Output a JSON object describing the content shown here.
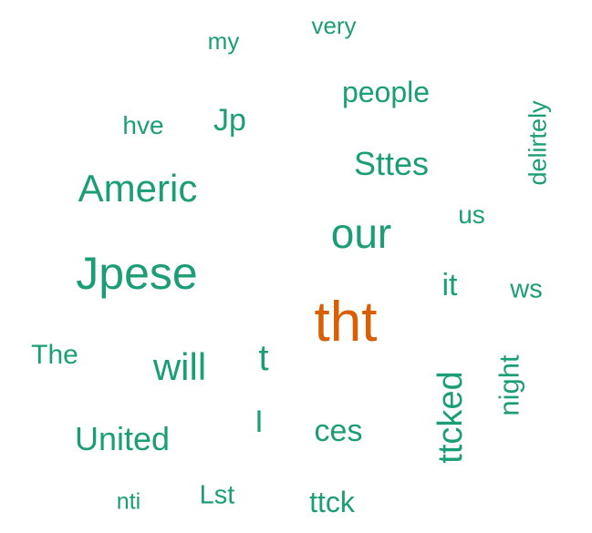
{
  "colors": {
    "primary": "#1b9e77",
    "highlight": "#d95f02",
    "background": "#ffffff"
  },
  "words": [
    {
      "text": "my"
    },
    {
      "text": "very"
    },
    {
      "text": "people"
    },
    {
      "text": "hve"
    },
    {
      "text": "Jp"
    },
    {
      "text": "delirtely"
    },
    {
      "text": "Sttes"
    },
    {
      "text": "Americ"
    },
    {
      "text": "us"
    },
    {
      "text": "our"
    },
    {
      "text": "Jpese"
    },
    {
      "text": "it"
    },
    {
      "text": "ws"
    },
    {
      "text": "tht"
    },
    {
      "text": "The"
    },
    {
      "text": "will"
    },
    {
      "text": "t"
    },
    {
      "text": "night"
    },
    {
      "text": "ttcked"
    },
    {
      "text": "United"
    },
    {
      "text": "I"
    },
    {
      "text": "ces"
    },
    {
      "text": "nti"
    },
    {
      "text": "Lst"
    },
    {
      "text": "ttck"
    }
  ]
}
